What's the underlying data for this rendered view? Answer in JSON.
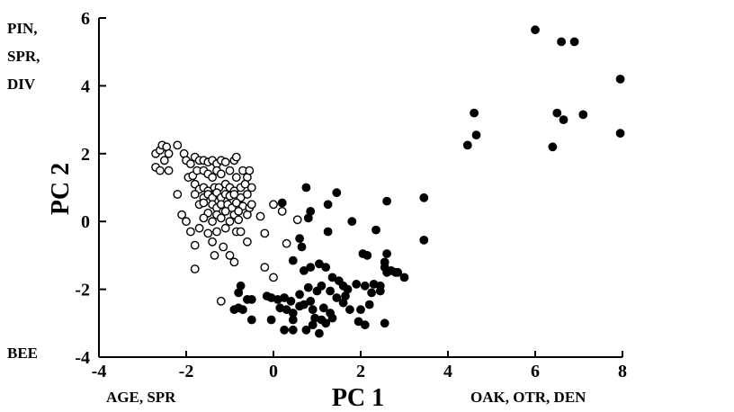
{
  "chart_data": {
    "type": "scatter",
    "title": "",
    "xlabel": "PC 1",
    "ylabel": "PC 2",
    "xlim": [
      -4,
      8
    ],
    "ylim": [
      -4,
      6
    ],
    "xticks": [
      "-4",
      "-2",
      "0",
      "2",
      "4",
      "6",
      "8"
    ],
    "yticks": [
      "-4",
      "-2",
      "0",
      "2",
      "4",
      "6"
    ],
    "grid": false,
    "annotations": {
      "y_positive": [
        "PIN,",
        "SPR,",
        "DIV"
      ],
      "y_negative": "BEE",
      "x_negative": "AGE, SPR",
      "x_positive": "OAK, OTR, DEN"
    },
    "series": [
      {
        "marker": "open-circle",
        "points": [
          [
            -2.7,
            2.0
          ],
          [
            -2.6,
            2.1
          ],
          [
            -2.55,
            2.25
          ],
          [
            -2.45,
            2.2
          ],
          [
            -2.4,
            2.0
          ],
          [
            -2.5,
            1.8
          ],
          [
            -2.7,
            1.6
          ],
          [
            -2.6,
            1.5
          ],
          [
            -2.4,
            1.5
          ],
          [
            -2.2,
            2.25
          ],
          [
            -2.05,
            2.0
          ],
          [
            -2.0,
            1.8
          ],
          [
            -1.9,
            1.7
          ],
          [
            -1.8,
            1.9
          ],
          [
            -1.7,
            1.8
          ],
          [
            -1.6,
            1.8
          ],
          [
            -1.5,
            1.75
          ],
          [
            -1.4,
            1.8
          ],
          [
            -1.3,
            1.7
          ],
          [
            -1.2,
            1.8
          ],
          [
            -1.1,
            1.75
          ],
          [
            -0.9,
            1.8
          ],
          [
            -0.85,
            1.9
          ],
          [
            -1.95,
            1.3
          ],
          [
            -1.85,
            1.35
          ],
          [
            -1.75,
            1.5
          ],
          [
            -1.6,
            1.5
          ],
          [
            -1.5,
            1.4
          ],
          [
            -1.4,
            1.3
          ],
          [
            -1.3,
            1.5
          ],
          [
            -1.2,
            1.4
          ],
          [
            -1.0,
            1.5
          ],
          [
            -0.85,
            1.3
          ],
          [
            -0.7,
            1.5
          ],
          [
            -0.6,
            1.3
          ],
          [
            -0.55,
            1.5
          ],
          [
            -1.8,
            1.1
          ],
          [
            -1.7,
            0.95
          ],
          [
            -1.6,
            1.0
          ],
          [
            -1.5,
            0.9
          ],
          [
            -1.35,
            1.0
          ],
          [
            -1.25,
            1.0
          ],
          [
            -1.1,
            1.1
          ],
          [
            -1.0,
            1.0
          ],
          [
            -0.9,
            0.9
          ],
          [
            -0.75,
            1.0
          ],
          [
            -0.65,
            1.1
          ],
          [
            -0.5,
            1.0
          ],
          [
            -2.2,
            0.8
          ],
          [
            -1.8,
            0.8
          ],
          [
            -1.6,
            0.7
          ],
          [
            -1.5,
            0.8
          ],
          [
            -1.4,
            0.7
          ],
          [
            -1.3,
            0.85
          ],
          [
            -1.2,
            0.7
          ],
          [
            -1.1,
            0.8
          ],
          [
            -1.0,
            0.75
          ],
          [
            -0.9,
            0.8
          ],
          [
            -0.75,
            0.7
          ],
          [
            -0.6,
            0.8
          ],
          [
            -1.7,
            0.5
          ],
          [
            -1.6,
            0.55
          ],
          [
            -1.4,
            0.5
          ],
          [
            -1.3,
            0.4
          ],
          [
            -1.2,
            0.5
          ],
          [
            -1.05,
            0.5
          ],
          [
            -0.95,
            0.4
          ],
          [
            -0.85,
            0.55
          ],
          [
            -0.7,
            0.45
          ],
          [
            -0.55,
            0.4
          ],
          [
            -2.1,
            0.2
          ],
          [
            -1.5,
            0.25
          ],
          [
            -1.3,
            0.2
          ],
          [
            -1.1,
            0.3
          ],
          [
            -0.9,
            0.2
          ],
          [
            -0.8,
            0.3
          ],
          [
            -0.6,
            0.2
          ],
          [
            -2.0,
            0.0
          ],
          [
            -1.6,
            0.1
          ],
          [
            -1.4,
            0.0
          ],
          [
            -1.2,
            0.1
          ],
          [
            -1.0,
            0.0
          ],
          [
            -0.8,
            0.05
          ],
          [
            -0.3,
            0.15
          ],
          [
            -0.5,
            0.5
          ],
          [
            0.0,
            0.5
          ],
          [
            0.2,
            0.3
          ],
          [
            0.55,
            0.05
          ],
          [
            -1.9,
            -0.3
          ],
          [
            -1.7,
            -0.2
          ],
          [
            -1.5,
            -0.35
          ],
          [
            -1.3,
            -0.3
          ],
          [
            -1.1,
            -0.2
          ],
          [
            -0.85,
            -0.3
          ],
          [
            -0.75,
            -0.3
          ],
          [
            -0.2,
            -0.35
          ],
          [
            -1.8,
            -0.7
          ],
          [
            -1.4,
            -0.6
          ],
          [
            -1.15,
            -0.75
          ],
          [
            -0.6,
            -0.6
          ],
          [
            0.3,
            -0.65
          ],
          [
            -1.35,
            -1.0
          ],
          [
            -1.0,
            -1.0
          ],
          [
            -0.9,
            -1.2
          ],
          [
            -1.8,
            -1.4
          ],
          [
            -0.2,
            -1.35
          ],
          [
            0.0,
            -1.65
          ],
          [
            -1.2,
            -2.35
          ]
        ]
      },
      {
        "marker": "filled-circle",
        "points": [
          [
            6.0,
            5.65
          ],
          [
            6.6,
            5.3
          ],
          [
            6.9,
            5.3
          ],
          [
            7.95,
            4.2
          ],
          [
            4.6,
            3.2
          ],
          [
            6.5,
            3.2
          ],
          [
            7.1,
            3.15
          ],
          [
            6.65,
            3.0
          ],
          [
            4.65,
            2.55
          ],
          [
            4.45,
            2.25
          ],
          [
            6.4,
            2.2
          ],
          [
            7.95,
            2.6
          ],
          [
            0.75,
            1.0
          ],
          [
            1.45,
            0.85
          ],
          [
            0.2,
            0.55
          ],
          [
            1.25,
            0.5
          ],
          [
            0.85,
            0.3
          ],
          [
            0.8,
            0.1
          ],
          [
            2.6,
            0.6
          ],
          [
            3.45,
            0.7
          ],
          [
            1.8,
            0.0
          ],
          [
            2.35,
            -0.25
          ],
          [
            1.25,
            -0.3
          ],
          [
            0.6,
            -0.5
          ],
          [
            3.45,
            -0.55
          ],
          [
            0.65,
            -0.75
          ],
          [
            2.05,
            -0.95
          ],
          [
            2.15,
            -1.0
          ],
          [
            2.6,
            -0.95
          ],
          [
            0.45,
            -1.15
          ],
          [
            1.05,
            -1.25
          ],
          [
            1.2,
            -1.35
          ],
          [
            0.7,
            -1.45
          ],
          [
            0.85,
            -1.35
          ],
          [
            2.55,
            -1.2
          ],
          [
            2.55,
            -1.35
          ],
          [
            2.6,
            -1.5
          ],
          [
            2.7,
            -1.45
          ],
          [
            2.85,
            -1.5
          ],
          [
            3.0,
            -1.65
          ],
          [
            2.8,
            -1.5
          ],
          [
            1.35,
            -1.65
          ],
          [
            1.5,
            -1.75
          ],
          [
            1.6,
            -1.9
          ],
          [
            1.1,
            -1.9
          ],
          [
            -0.75,
            -1.9
          ],
          [
            0.8,
            -1.95
          ],
          [
            1.0,
            -2.05
          ],
          [
            1.3,
            -2.05
          ],
          [
            1.7,
            -2.0
          ],
          [
            1.9,
            -1.85
          ],
          [
            2.1,
            -1.9
          ],
          [
            2.3,
            -1.85
          ],
          [
            2.45,
            -1.9
          ],
          [
            -0.8,
            -2.1
          ],
          [
            0.6,
            -2.15
          ],
          [
            1.45,
            -2.25
          ],
          [
            1.65,
            -2.2
          ],
          [
            2.25,
            -2.1
          ],
          [
            2.45,
            -2.05
          ],
          [
            -0.6,
            -2.3
          ],
          [
            -0.5,
            -2.3
          ],
          [
            -0.15,
            -2.2
          ],
          [
            -0.05,
            -2.25
          ],
          [
            0.1,
            -2.3
          ],
          [
            0.25,
            -2.25
          ],
          [
            0.4,
            -2.35
          ],
          [
            0.7,
            -2.45
          ],
          [
            0.85,
            -2.35
          ],
          [
            1.6,
            -2.4
          ],
          [
            2.2,
            -2.45
          ],
          [
            -0.7,
            -2.6
          ],
          [
            -0.9,
            -2.6
          ],
          [
            -0.8,
            -2.55
          ],
          [
            0.15,
            -2.55
          ],
          [
            0.3,
            -2.6
          ],
          [
            0.45,
            -2.7
          ],
          [
            0.6,
            -2.5
          ],
          [
            0.9,
            -2.6
          ],
          [
            1.15,
            -2.55
          ],
          [
            1.3,
            -2.7
          ],
          [
            1.75,
            -2.6
          ],
          [
            2.0,
            -2.6
          ],
          [
            0.95,
            -2.85
          ],
          [
            1.1,
            -2.9
          ],
          [
            1.35,
            -2.85
          ],
          [
            0.45,
            -2.9
          ],
          [
            -0.05,
            -2.9
          ],
          [
            -0.5,
            -2.9
          ],
          [
            0.9,
            -3.05
          ],
          [
            1.2,
            -3.0
          ],
          [
            1.95,
            -2.95
          ],
          [
            2.1,
            -3.05
          ],
          [
            2.55,
            -3.0
          ],
          [
            0.25,
            -3.2
          ],
          [
            0.45,
            -3.2
          ],
          [
            0.75,
            -3.2
          ],
          [
            1.05,
            -3.3
          ]
        ]
      }
    ]
  }
}
